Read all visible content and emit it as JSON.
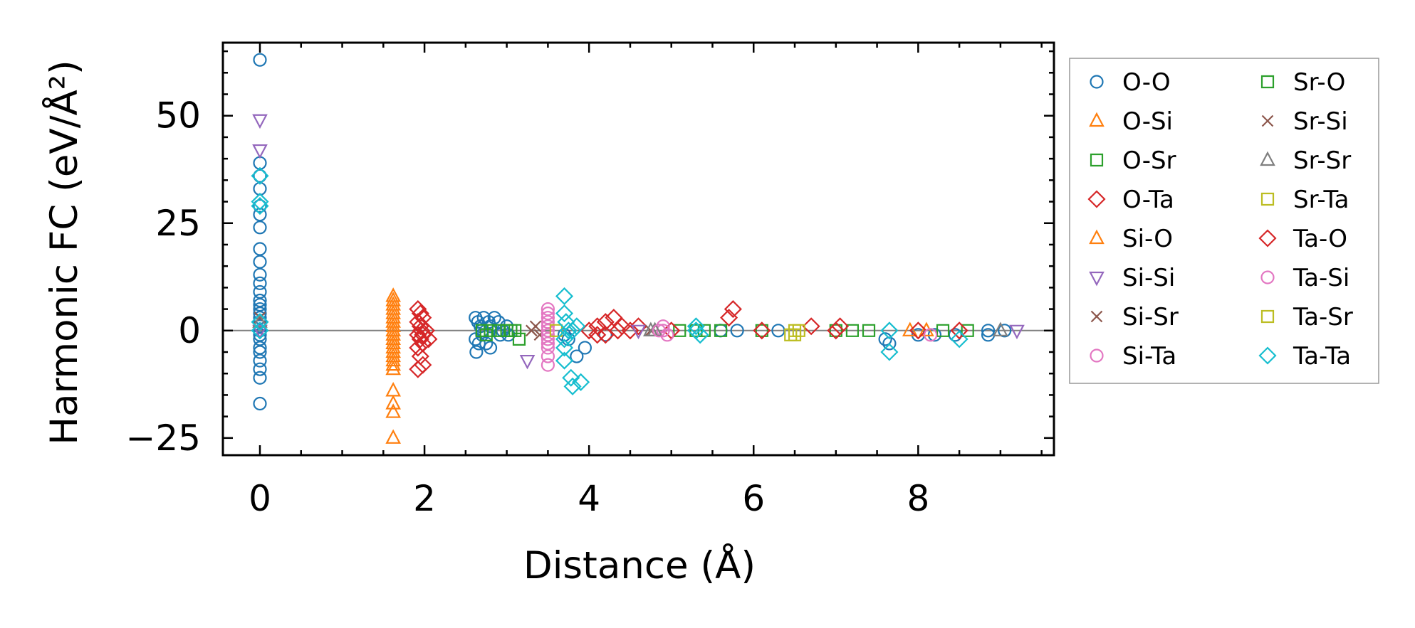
{
  "chart_data": {
    "type": "scatter",
    "xlabel": "Distance (Å)",
    "ylabel": "Harmonic FC (eV/Å²)",
    "xlim": [
      -0.45,
      9.65
    ],
    "ylim": [
      -29,
      67
    ],
    "xticks": [
      "0",
      "2",
      "4",
      "6",
      "8"
    ],
    "yticks": [
      "−25",
      "0",
      "25",
      "50"
    ],
    "reference_line_y": 0,
    "legend": {
      "placement": "outside-right",
      "columns": 2
    },
    "series": [
      {
        "name": "O-O",
        "marker": "circle",
        "color": "#1f77b4",
        "points": [
          [
            0,
            63
          ],
          [
            0,
            39
          ],
          [
            0,
            36
          ],
          [
            0,
            33
          ],
          [
            0,
            29
          ],
          [
            0,
            27
          ],
          [
            0,
            24
          ],
          [
            0,
            19
          ],
          [
            0,
            16
          ],
          [
            0,
            13
          ],
          [
            0,
            11
          ],
          [
            0,
            9
          ],
          [
            0,
            7
          ],
          [
            0,
            6
          ],
          [
            0,
            5
          ],
          [
            0,
            4
          ],
          [
            0,
            3
          ],
          [
            0,
            2
          ],
          [
            0,
            1
          ],
          [
            0,
            0
          ],
          [
            0,
            -1
          ],
          [
            0,
            -2
          ],
          [
            0,
            -4
          ],
          [
            0,
            -5
          ],
          [
            0,
            -7
          ],
          [
            0,
            -9
          ],
          [
            0,
            -11
          ],
          [
            0,
            -17
          ],
          [
            2.62,
            3
          ],
          [
            2.65,
            2
          ],
          [
            2.68,
            1
          ],
          [
            2.7,
            0
          ],
          [
            2.7,
            -1
          ],
          [
            2.62,
            -2
          ],
          [
            2.66,
            -3
          ],
          [
            2.63,
            -5
          ],
          [
            2.72,
            3
          ],
          [
            2.78,
            2
          ],
          [
            2.8,
            1
          ],
          [
            2.85,
            3
          ],
          [
            2.9,
            2
          ],
          [
            2.92,
            -1
          ],
          [
            2.95,
            0
          ],
          [
            3.0,
            1
          ],
          [
            3.02,
            -1
          ],
          [
            2.75,
            -3
          ],
          [
            2.8,
            -4
          ],
          [
            3.7,
            -1
          ],
          [
            3.75,
            -2
          ],
          [
            3.85,
            -6
          ],
          [
            3.95,
            -4
          ],
          [
            4.2,
            -1
          ],
          [
            5.6,
            0
          ],
          [
            5.8,
            0
          ],
          [
            6.3,
            0
          ],
          [
            7.6,
            -2
          ],
          [
            7.65,
            -3
          ],
          [
            8.0,
            -1
          ],
          [
            8.2,
            -1
          ],
          [
            8.45,
            -1
          ],
          [
            8.85,
            0
          ],
          [
            8.85,
            -1
          ],
          [
            9.05,
            0
          ]
        ]
      },
      {
        "name": "O-Si",
        "marker": "triangle-up",
        "color": "#ff7f0e",
        "points": [
          [
            1.62,
            8
          ],
          [
            1.62,
            6
          ],
          [
            1.62,
            5
          ],
          [
            1.62,
            4
          ],
          [
            1.62,
            3
          ],
          [
            1.62,
            2
          ],
          [
            1.62,
            1
          ],
          [
            1.62,
            0
          ],
          [
            1.62,
            -1
          ],
          [
            1.62,
            -2
          ],
          [
            1.62,
            -3
          ],
          [
            1.62,
            -4
          ],
          [
            1.62,
            -5
          ],
          [
            1.62,
            -6
          ],
          [
            1.62,
            -7
          ],
          [
            1.62,
            -8
          ],
          [
            1.62,
            -14
          ],
          [
            1.62,
            -17
          ],
          [
            1.62,
            -19
          ],
          [
            1.62,
            -25
          ],
          [
            7.9,
            0
          ],
          [
            8.1,
            0
          ]
        ]
      },
      {
        "name": "O-Sr",
        "marker": "square",
        "color": "#2ca02c",
        "points": [
          [
            2.7,
            0
          ],
          [
            2.8,
            0
          ],
          [
            2.9,
            0
          ],
          [
            3.0,
            0
          ],
          [
            3.1,
            0
          ],
          [
            3.15,
            -2
          ],
          [
            5.1,
            0
          ],
          [
            5.4,
            0
          ],
          [
            5.6,
            0
          ],
          [
            6.1,
            0
          ],
          [
            7.2,
            0
          ],
          [
            7.4,
            0
          ],
          [
            8.3,
            0
          ],
          [
            8.6,
            0
          ]
        ]
      },
      {
        "name": "O-Ta",
        "marker": "diamond",
        "color": "#d62728",
        "points": [
          [
            1.92,
            5
          ],
          [
            1.95,
            4
          ],
          [
            1.98,
            3
          ],
          [
            1.92,
            2
          ],
          [
            1.95,
            1
          ],
          [
            1.96,
            0
          ],
          [
            1.92,
            -1
          ],
          [
            1.95,
            -2
          ],
          [
            1.98,
            -3
          ],
          [
            1.92,
            -4
          ],
          [
            1.95,
            -6
          ],
          [
            1.98,
            -8
          ],
          [
            1.92,
            -9
          ],
          [
            2.02,
            0
          ],
          [
            2.05,
            -2
          ],
          [
            4.0,
            0
          ],
          [
            4.1,
            1
          ],
          [
            4.2,
            2
          ],
          [
            4.3,
            3
          ],
          [
            4.4,
            1
          ],
          [
            4.5,
            0
          ],
          [
            4.6,
            1
          ],
          [
            4.2,
            -1
          ],
          [
            5.0,
            0
          ],
          [
            5.75,
            5
          ],
          [
            5.7,
            3
          ],
          [
            6.1,
            0
          ],
          [
            6.7,
            1
          ],
          [
            7.05,
            1
          ],
          [
            8.0,
            0
          ],
          [
            8.5,
            0
          ]
        ]
      },
      {
        "name": "Si-O",
        "marker": "triangle-up",
        "color": "#ff7f0e",
        "points": [
          [
            1.62,
            7
          ],
          [
            1.62,
            0
          ],
          [
            1.62,
            -3
          ],
          [
            1.62,
            -9
          ]
        ]
      },
      {
        "name": "Si-Si",
        "marker": "triangle-down",
        "color": "#9467bd",
        "points": [
          [
            0,
            49
          ],
          [
            0,
            42
          ],
          [
            0,
            0
          ],
          [
            3.25,
            -7
          ],
          [
            4.6,
            0
          ],
          [
            9.2,
            0
          ]
        ]
      },
      {
        "name": "Si-Sr",
        "marker": "x",
        "color": "#8c564b",
        "points": [
          [
            0,
            3
          ],
          [
            3.3,
            0
          ],
          [
            3.4,
            -1
          ]
        ]
      },
      {
        "name": "Si-Ta",
        "marker": "circle",
        "color": "#e377c2",
        "points": [
          [
            3.5,
            5
          ],
          [
            3.5,
            4
          ],
          [
            3.5,
            2
          ],
          [
            3.5,
            1
          ],
          [
            3.5,
            0
          ],
          [
            3.5,
            -1
          ],
          [
            3.5,
            -2
          ],
          [
            3.5,
            -4
          ],
          [
            3.5,
            -6
          ],
          [
            3.5,
            -8
          ],
          [
            4.9,
            1
          ],
          [
            4.9,
            0
          ],
          [
            4.95,
            -1
          ],
          [
            8.15,
            -1
          ]
        ]
      },
      {
        "name": "Sr-O",
        "marker": "square",
        "color": "#2ca02c",
        "points": [
          [
            2.75,
            -1
          ],
          [
            3.05,
            0
          ],
          [
            5.3,
            0
          ],
          [
            7.0,
            0
          ]
        ]
      },
      {
        "name": "Sr-Si",
        "marker": "x",
        "color": "#8c564b",
        "points": [
          [
            3.35,
            1
          ],
          [
            4.75,
            0
          ]
        ]
      },
      {
        "name": "Sr-Sr",
        "marker": "triangle-up",
        "color": "#7f7f7f",
        "points": [
          [
            0,
            2
          ],
          [
            4.8,
            0
          ],
          [
            4.75,
            0
          ],
          [
            9.0,
            0
          ]
        ]
      },
      {
        "name": "Sr-Ta",
        "marker": "square",
        "color": "#bcbd22",
        "points": [
          [
            3.6,
            0
          ],
          [
            6.5,
            0
          ],
          [
            6.45,
            -1
          ]
        ]
      },
      {
        "name": "Ta-O",
        "marker": "diamond",
        "color": "#d62728",
        "points": [
          [
            1.98,
            -1
          ],
          [
            4.1,
            -1
          ],
          [
            4.35,
            0
          ],
          [
            7.0,
            0
          ]
        ]
      },
      {
        "name": "Ta-Si",
        "marker": "circle",
        "color": "#e377c2",
        "points": [
          [
            3.5,
            3
          ],
          [
            3.5,
            -3
          ],
          [
            4.85,
            0
          ]
        ]
      },
      {
        "name": "Ta-Sr",
        "marker": "square",
        "color": "#bcbd22",
        "points": [
          [
            6.55,
            0
          ],
          [
            6.5,
            -1
          ]
        ]
      },
      {
        "name": "Ta-Ta",
        "marker": "diamond",
        "color": "#17becf",
        "points": [
          [
            0,
            36
          ],
          [
            0,
            30
          ],
          [
            0,
            29
          ],
          [
            0,
            2
          ],
          [
            0,
            0
          ],
          [
            3.7,
            8
          ],
          [
            3.7,
            4
          ],
          [
            3.72,
            2
          ],
          [
            3.75,
            0
          ],
          [
            3.7,
            -2
          ],
          [
            3.7,
            -4
          ],
          [
            3.7,
            -7
          ],
          [
            3.78,
            -11
          ],
          [
            3.8,
            -13
          ],
          [
            3.9,
            -12
          ],
          [
            3.8,
            0
          ],
          [
            3.85,
            1
          ],
          [
            5.3,
            1
          ],
          [
            5.3,
            0
          ],
          [
            5.35,
            -1
          ],
          [
            7.65,
            0
          ],
          [
            7.65,
            -5
          ],
          [
            8.5,
            -2
          ]
        ]
      }
    ]
  }
}
